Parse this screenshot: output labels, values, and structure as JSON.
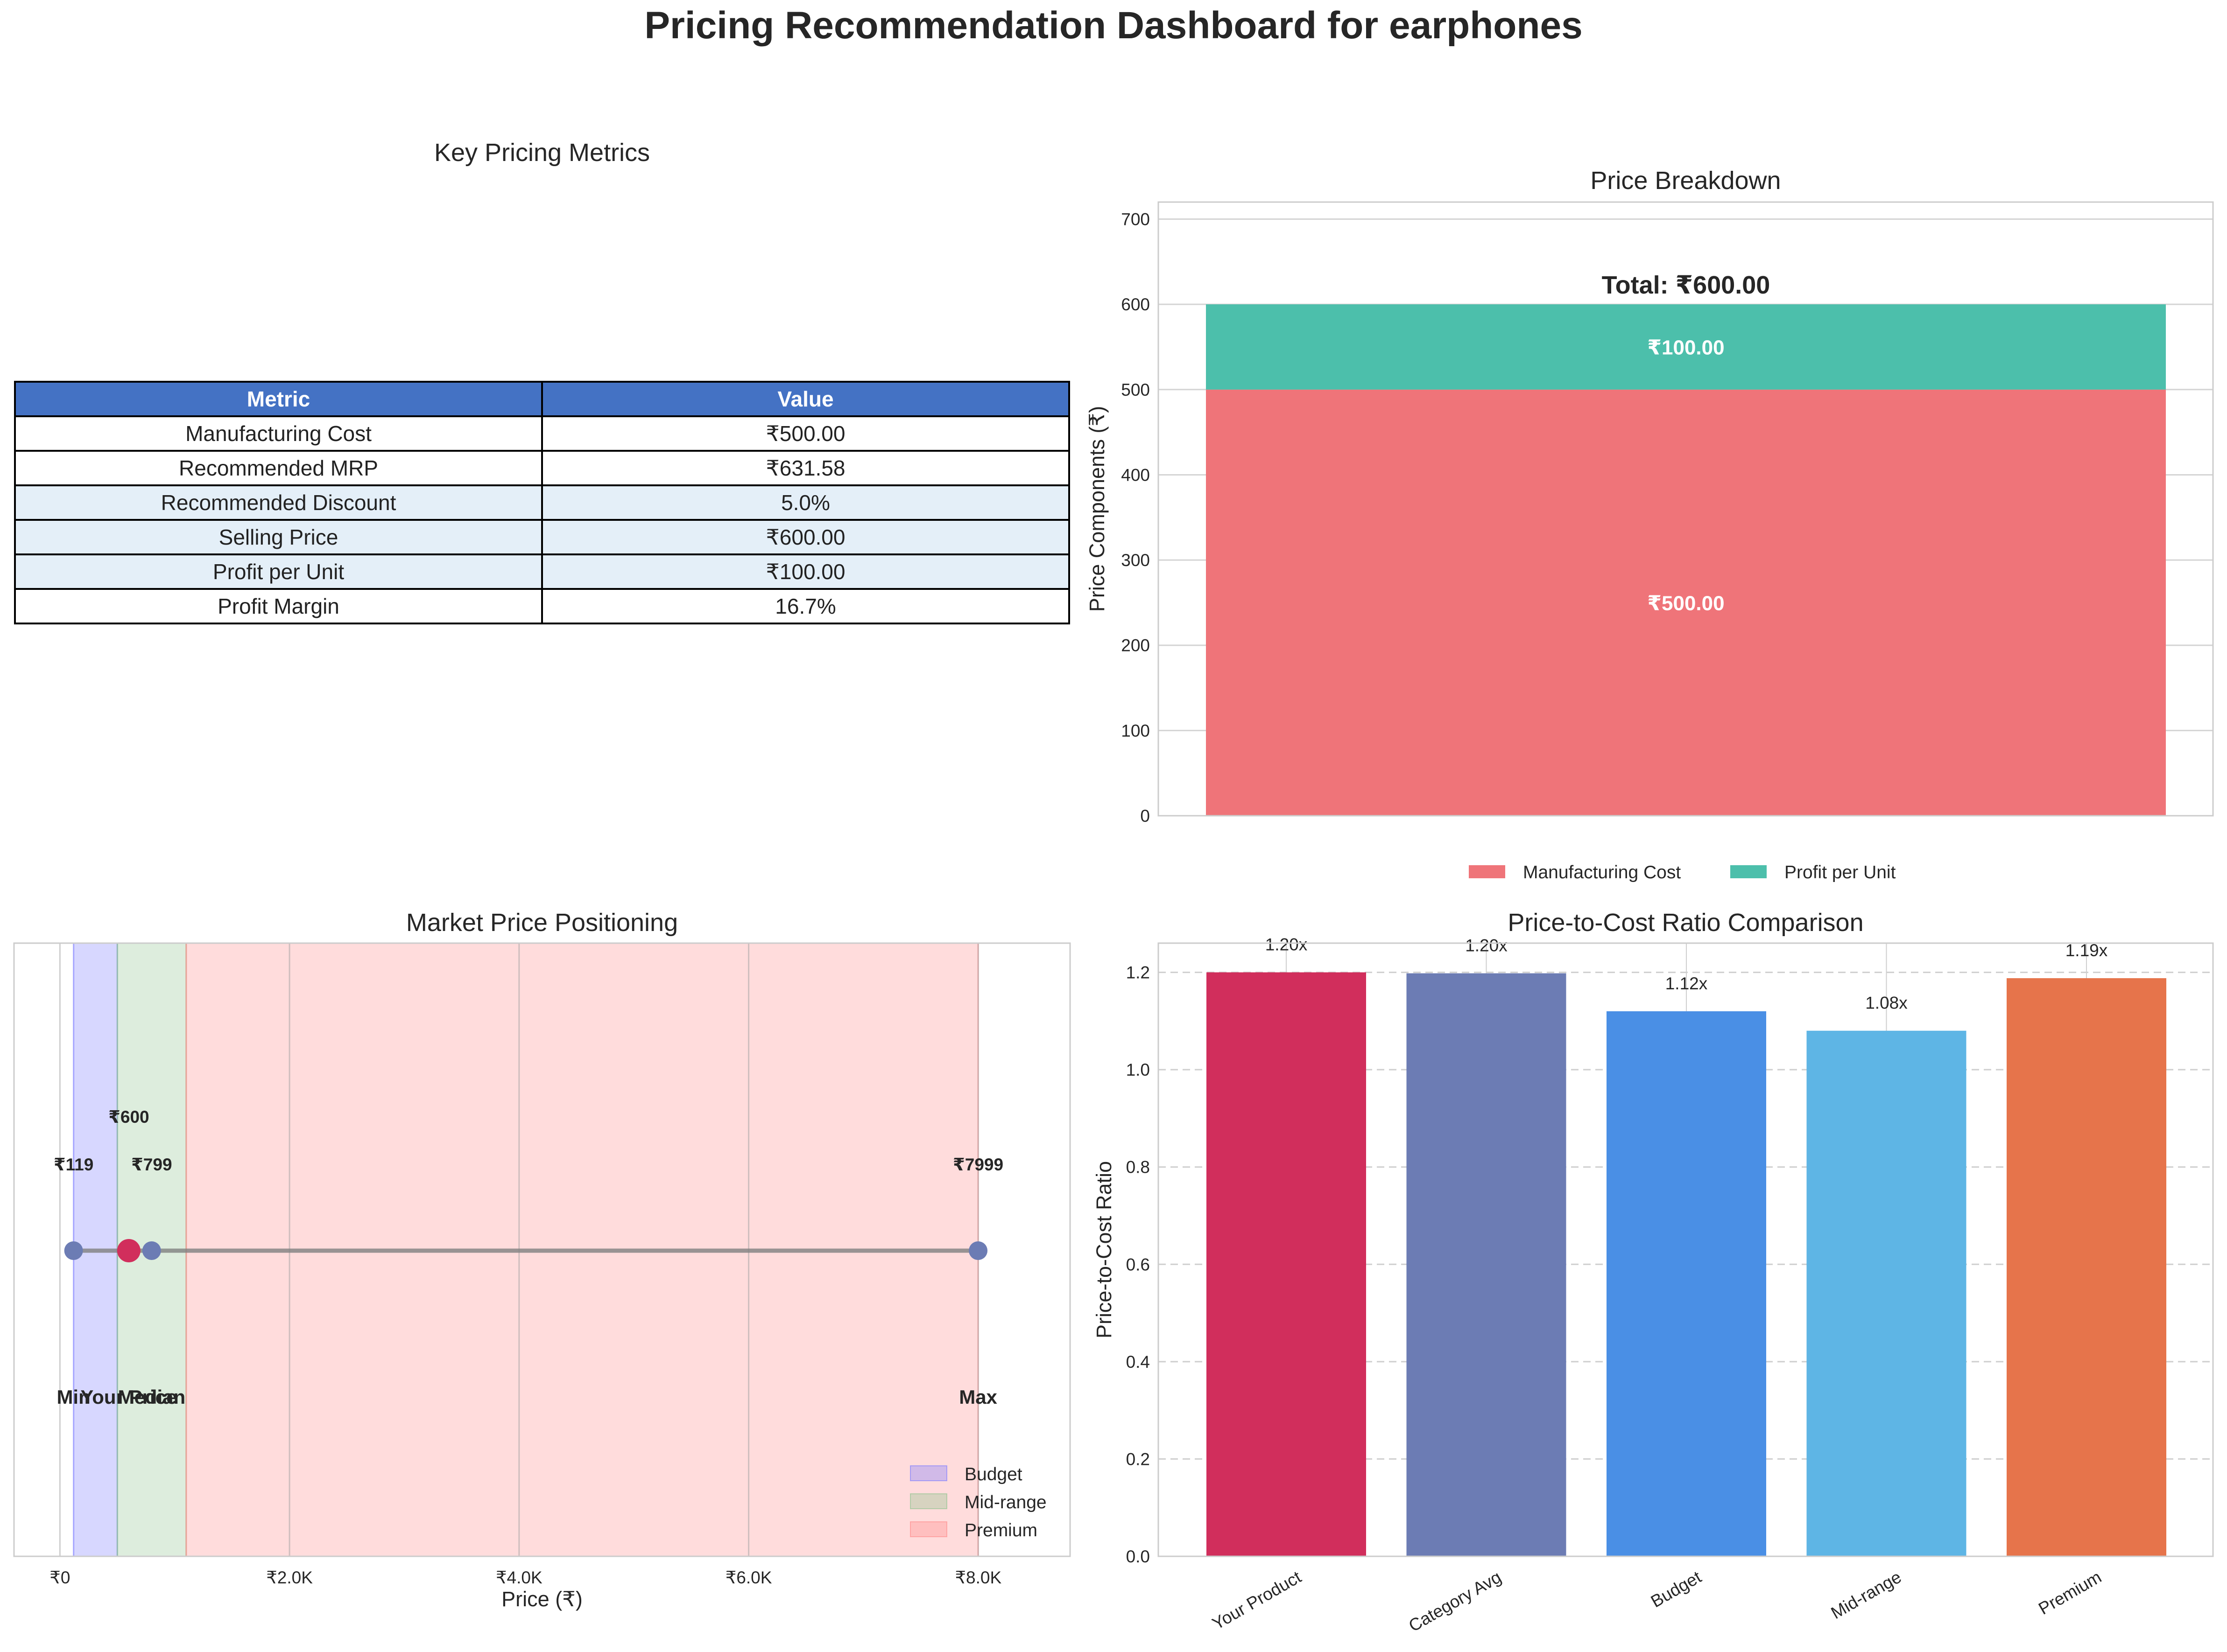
{
  "suptitle": "Pricing Recommendation Dashboard for earphones",
  "colors": {
    "header": "#4472c4",
    "row_highlight": "#e4eff8",
    "manufacturing": "#ef7479",
    "profit": "#4cbfab",
    "your_product": "#d12e5c",
    "category_avg": "#6c7cb4",
    "budget": "#4a8fe5",
    "midrange": "#5eb5e5",
    "premium": "#e6744b"
  },
  "table": {
    "title": "Key Pricing Metrics",
    "headers": [
      "Metric",
      "Value"
    ],
    "rows": [
      {
        "metric": "Manufacturing Cost",
        "value": "₹500.00",
        "highlight": false
      },
      {
        "metric": "Recommended MRP",
        "value": "₹631.58",
        "highlight": false
      },
      {
        "metric": "Recommended Discount",
        "value": "5.0%",
        "highlight": true
      },
      {
        "metric": "Selling Price",
        "value": "₹600.00",
        "highlight": true
      },
      {
        "metric": "Profit per Unit",
        "value": "₹100.00",
        "highlight": true
      },
      {
        "metric": "Profit Margin",
        "value": "16.7%",
        "highlight": false
      }
    ]
  },
  "chart_data": [
    {
      "id": "breakdown",
      "type": "bar",
      "title": "Price Breakdown",
      "ylabel": "Price Components (₹)",
      "ylim": [
        0,
        720
      ],
      "yticks": [
        0,
        100,
        200,
        300,
        400,
        500,
        600,
        700
      ],
      "grid": true,
      "legend": "bottom-center",
      "stacked": true,
      "series": [
        {
          "name": "Manufacturing Cost",
          "value": 500,
          "label": "₹500.00",
          "color": "#ef7479"
        },
        {
          "name": "Profit per Unit",
          "value": 100,
          "label": "₹100.00",
          "color": "#4cbfab"
        }
      ],
      "total_label": "Total: ₹600.00"
    },
    {
      "id": "positioning",
      "type": "scatter",
      "title": "Market Price Positioning",
      "xlabel": "Price (₹)",
      "xlim": [
        -400,
        8800
      ],
      "xticks": [
        0,
        2000,
        4000,
        6000,
        8000
      ],
      "xtick_labels": [
        "₹0",
        "₹2.0K",
        "₹4.0K",
        "₹6.0K",
        "₹8.0K"
      ],
      "grid": true,
      "legend": "bottom-right",
      "bands": [
        {
          "name": "Budget",
          "from": 119,
          "to": 500,
          "color": "#7b7bff"
        },
        {
          "name": "Mid-range",
          "from": 500,
          "to": 1100,
          "color": "#8dc38d"
        },
        {
          "name": "Premium",
          "from": 1100,
          "to": 7999,
          "color": "#ff8a8a"
        }
      ],
      "points": [
        {
          "label": "Min",
          "x": 119,
          "value_label": "₹119",
          "is_product": false
        },
        {
          "label": "Your Price",
          "x": 600,
          "value_label": "₹600",
          "is_product": true
        },
        {
          "label": "Median",
          "x": 799,
          "value_label": "₹799",
          "is_product": false
        },
        {
          "label": "Max",
          "x": 7999,
          "value_label": "₹7999",
          "is_product": false
        }
      ]
    },
    {
      "id": "ratio",
      "type": "bar",
      "title": "Price-to-Cost Ratio Comparison",
      "ylabel": "Price-to-Cost Ratio",
      "ylim": [
        0,
        1.26
      ],
      "yticks": [
        0.0,
        0.2,
        0.4,
        0.6,
        0.8,
        1.0,
        1.2
      ],
      "grid": true,
      "categories": [
        "Your Product",
        "Category Avg",
        "Budget",
        "Mid-range",
        "Premium"
      ],
      "values": [
        1.2,
        1.198,
        1.12,
        1.08,
        1.188
      ],
      "value_labels": [
        "1.20x",
        "1.20x",
        "1.12x",
        "1.08x",
        "1.19x"
      ],
      "bar_colors": [
        "#d12e5c",
        "#6c7cb4",
        "#4a8fe5",
        "#5eb5e5",
        "#e6744b"
      ]
    }
  ]
}
